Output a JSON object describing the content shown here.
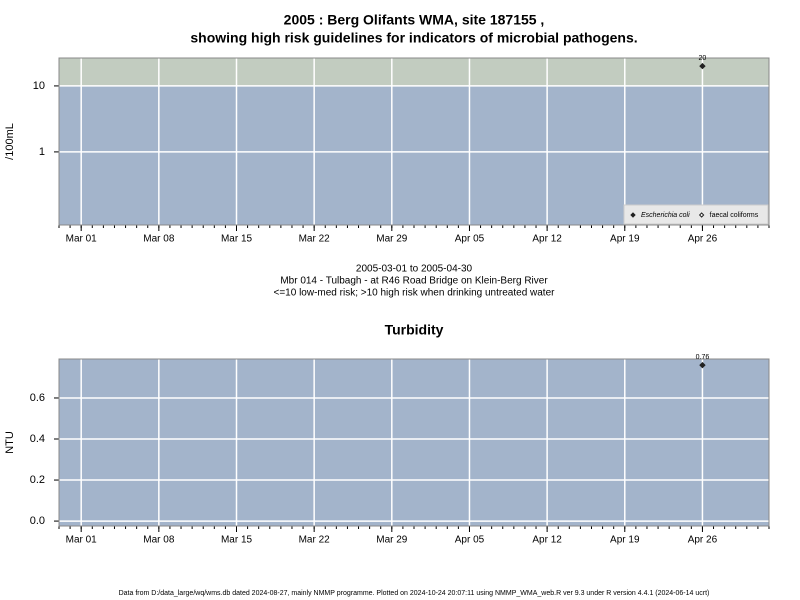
{
  "chart_data": [
    {
      "type": "scatter",
      "title": "2005 : Berg Olifants WMA, site 187155 ,",
      "subtitle": "showing high risk guidelines for indicators of microbial pathogens.",
      "ylabel": "/100mL",
      "log_y": true,
      "ylim": [
        0.078,
        26.5
      ],
      "yticks": [
        1,
        10
      ],
      "threshold": 10,
      "threshold_color": "#c2ccc0",
      "panel_color": "#a3b4cb",
      "grid": true,
      "xlim": [
        "Feb 27",
        "May 02"
      ],
      "xticks": [
        "Mar 01",
        "Mar 08",
        "Mar 15",
        "Mar 22",
        "Mar 29",
        "Apr 05",
        "Apr 12",
        "Apr 19",
        "Apr 26"
      ],
      "x": [
        "Apr 26"
      ],
      "series": [
        {
          "name": "Escherichia coli",
          "color": "#222222",
          "marker": "filled",
          "values": [
            20
          ]
        },
        {
          "name": "faecal coliforms",
          "color": "#222222",
          "marker": "open",
          "values": [
            null
          ]
        }
      ],
      "legend": "lower right",
      "notes": [
        "2005-03-01 to 2005-04-30",
        "Mbr 014 - Tulbagh - at R46 Road Bridge on Klein-Berg River",
        "<=10 low-med risk; >10 high risk when drinking untreated water"
      ]
    },
    {
      "type": "scatter",
      "title": "Turbidity",
      "ylabel": "NTU",
      "log_y": false,
      "ylim": [
        -0.024,
        0.79
      ],
      "yticks": [
        {
          "value": 0,
          "label": "0.0"
        },
        0.2,
        0.4,
        0.6
      ],
      "panel_color": "#a3b4cb",
      "grid": true,
      "xlim": [
        "Feb 27",
        "May 02"
      ],
      "xticks": [
        "Mar 01",
        "Mar 08",
        "Mar 15",
        "Mar 22",
        "Mar 29",
        "Apr 05",
        "Apr 12",
        "Apr 19",
        "Apr 26"
      ],
      "x": [
        "Apr 26"
      ],
      "series": [
        {
          "name": "Turbidity",
          "color": "#222222",
          "marker": "filled",
          "values": [
            0.76
          ]
        }
      ]
    }
  ],
  "footer": "Data from D:/data_large/wq/wms.db dated 2024-08-27, mainly NMMP programme. Plotted on 2024-10-24 20:07:11 using NMMP_WMA_web.R ver 9.3 under R version 4.4.1 (2024-06-14 ucrt)"
}
